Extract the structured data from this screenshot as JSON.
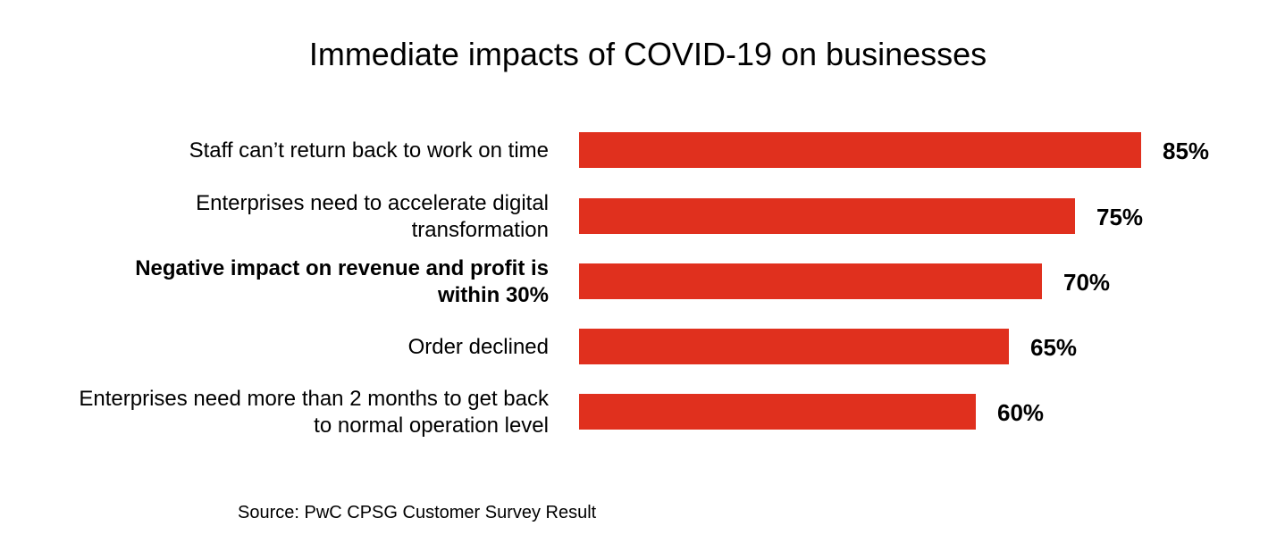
{
  "chart_data": {
    "type": "bar",
    "orientation": "horizontal",
    "title": "Immediate impacts of COVID-19 on businesses",
    "categories": [
      [
        "Staff can’t return back to work on time"
      ],
      [
        "Enterprises need to accelerate digital",
        "transformation"
      ],
      [
        "Negative  impact on revenue and profit is",
        "within 30%"
      ],
      [
        "Order declined"
      ],
      [
        "Enterprises need more than 2 months to get back",
        "to normal operation level"
      ]
    ],
    "values": [
      85,
      75,
      70,
      65,
      60
    ],
    "value_labels": [
      "85%",
      "75%",
      "70%",
      "65%",
      "60%"
    ],
    "bold_categories": [
      2
    ],
    "bar_color": "#e0301e",
    "xlim": [
      0,
      100
    ],
    "grid": false,
    "legend": "none"
  },
  "source": "Source: PwC CPSG Customer Survey Result"
}
